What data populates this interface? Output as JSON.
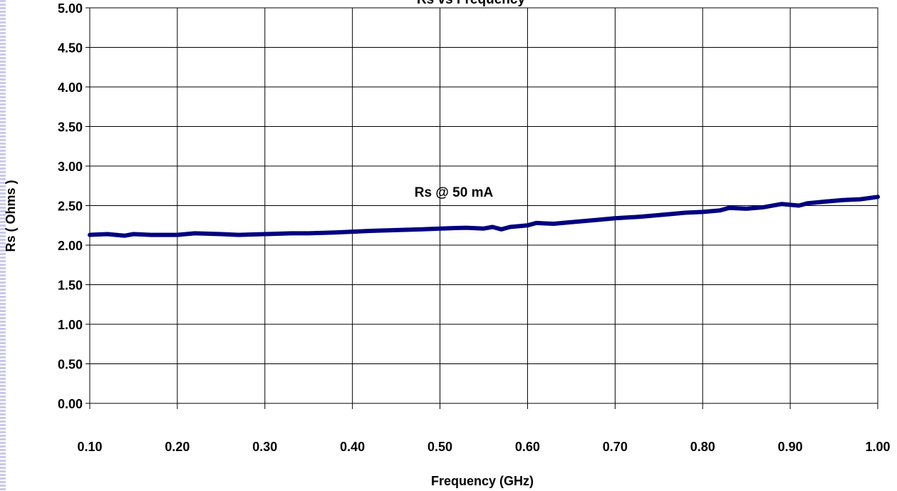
{
  "chart_data": {
    "type": "line",
    "title": "Rs vs Frequency",
    "xlabel": "Frequency (GHz)",
    "ylabel": "Rs ( Ohms )",
    "xlim": [
      0.1,
      1.0
    ],
    "ylim": [
      0.0,
      5.0
    ],
    "x_ticks": [
      "0.10",
      "0.20",
      "0.30",
      "0.40",
      "0.50",
      "0.60",
      "0.70",
      "0.80",
      "0.90",
      "1.00"
    ],
    "y_ticks": [
      "0.00",
      "0.50",
      "1.00",
      "1.50",
      "2.00",
      "2.50",
      "3.00",
      "3.50",
      "4.00",
      "4.50",
      "5.00"
    ],
    "grid": true,
    "annotation": "Rs @ 50 mA",
    "series_color": "#000080",
    "series": [
      {
        "x": [
          0.1,
          0.12,
          0.14,
          0.15,
          0.17,
          0.2,
          0.22,
          0.25,
          0.27,
          0.3,
          0.33,
          0.35,
          0.38,
          0.4,
          0.42,
          0.45,
          0.48,
          0.5,
          0.53,
          0.55,
          0.56,
          0.57,
          0.58,
          0.6,
          0.61,
          0.63,
          0.65,
          0.68,
          0.7,
          0.73,
          0.76,
          0.78,
          0.8,
          0.82,
          0.83,
          0.85,
          0.87,
          0.89,
          0.91,
          0.92,
          0.94,
          0.96,
          0.98,
          1.0
        ],
        "y": [
          2.13,
          2.14,
          2.12,
          2.14,
          2.13,
          2.13,
          2.15,
          2.14,
          2.13,
          2.14,
          2.15,
          2.15,
          2.16,
          2.17,
          2.18,
          2.19,
          2.2,
          2.21,
          2.22,
          2.21,
          2.23,
          2.2,
          2.23,
          2.25,
          2.28,
          2.27,
          2.29,
          2.32,
          2.34,
          2.36,
          2.39,
          2.41,
          2.42,
          2.44,
          2.47,
          2.46,
          2.48,
          2.52,
          2.5,
          2.53,
          2.55,
          2.57,
          2.58,
          2.61
        ]
      }
    ]
  }
}
